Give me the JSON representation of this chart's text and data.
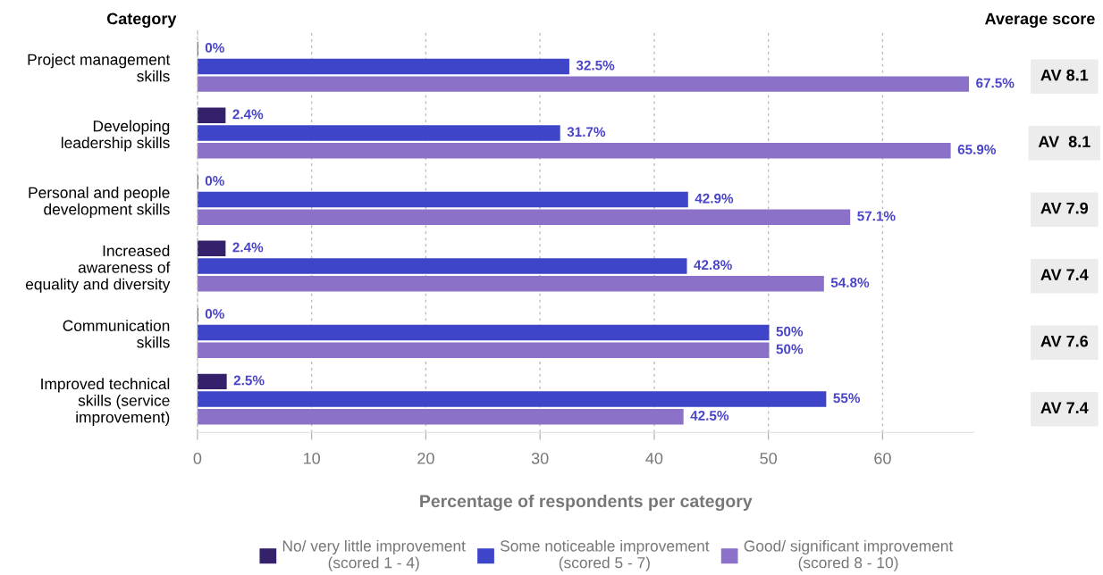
{
  "chart_data": {
    "type": "bar",
    "orientation": "horizontal",
    "xlabel": "Percentage of respondents per category",
    "ylabel": "Category",
    "categories": [
      "Project management\nskills",
      "Developing\nleadership skills",
      "Personal and people\ndevelopment skills",
      "Increased\nawareness of\nequality and diversity",
      "Communication\nskills",
      "Improved technical\nskills (service\nimprovement)"
    ],
    "series": [
      {
        "name": "No/ very little improvement\n(scored 1 - 4)",
        "color": "#35206b",
        "values": [
          0,
          2.4,
          0,
          2.4,
          0,
          2.5
        ],
        "value_labels": [
          "0%",
          "2.4%",
          "0%",
          "2.4%",
          "0%",
          "2.5%"
        ]
      },
      {
        "name": "Some noticeable improvement\n(scored 5 - 7)",
        "color": "#3e45c8",
        "values": [
          32.5,
          31.7,
          42.9,
          42.8,
          50,
          55
        ],
        "value_labels": [
          "32.5%",
          "31.7%",
          "42.9%",
          "42.8%",
          "50%",
          "55%"
        ]
      },
      {
        "name": "Good/ significant improvement\n(scored 8 - 10)",
        "color": "#8b72c8",
        "values": [
          67.5,
          65.9,
          57.1,
          54.8,
          50,
          42.5
        ],
        "value_labels": [
          "67.5%",
          "65.9%",
          "57.1%",
          "54.8%",
          "50%",
          "42.5%"
        ]
      }
    ],
    "xlim": [
      0,
      68
    ],
    "xticks": [
      0,
      10,
      20,
      30,
      40,
      50,
      60
    ],
    "grid": "x",
    "legend": "bottom",
    "annotations": [
      "Average score",
      "AV 8.1",
      "AV  8.1",
      "AV 7.9",
      "AV 7.4",
      "AV 7.6",
      "AV 7.4"
    ]
  }
}
